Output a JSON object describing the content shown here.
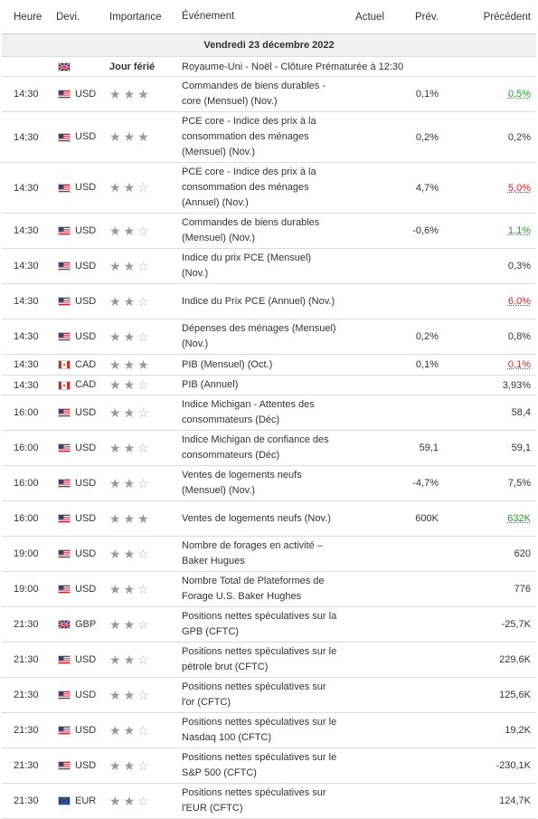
{
  "headers": {
    "time": "Heure",
    "currency": "Devi.",
    "importance": "Importance",
    "event": "Événement",
    "actual": "Actuel",
    "forecast": "Prév.",
    "previous": "Précédent"
  },
  "date_row": "Vendredi 23 décembre 2022",
  "holiday": {
    "flag": "gb",
    "importance_label": "Jour férié",
    "event": "Royaume-Uni - Noël - Clôture Prématurée à 12:30"
  },
  "colors": {
    "green": "#2a9a2a",
    "red": "#d0262d",
    "date_bg": "#f1f1f1"
  },
  "rows": [
    {
      "time": "14:30",
      "flag": "us",
      "currency": "USD",
      "stars": 3,
      "event": "Commandes de biens durables - core (Mensuel) (Nov.)",
      "actual": "",
      "forecast": "0,1%",
      "previous": "0,5%",
      "prev_color": "green",
      "height": 39
    },
    {
      "time": "14:30",
      "flag": "us",
      "currency": "USD",
      "stars": 3,
      "event": "PCE core - Indice des prix à la consommation des ménages (Mensuel) (Nov.)",
      "actual": "",
      "forecast": "0,2%",
      "previous": "0,2%",
      "prev_color": "",
      "height": 56
    },
    {
      "time": "14:30",
      "flag": "us",
      "currency": "USD",
      "stars": 2,
      "event": "PCE core - Indice des prix à la consommation des ménages (Annuel) (Nov.)",
      "actual": "",
      "forecast": "4,7%",
      "previous": "5,0%",
      "prev_color": "red",
      "height": 56
    },
    {
      "time": "14:30",
      "flag": "us",
      "currency": "USD",
      "stars": 2,
      "event": "Commandes de biens durables (Mensuel) (Nov.)",
      "actual": "",
      "forecast": "-0,6%",
      "previous": "1,1%",
      "prev_color": "green",
      "height": 39
    },
    {
      "time": "14:30",
      "flag": "us",
      "currency": "USD",
      "stars": 2,
      "event": "Indice du prix PCE (Mensuel) (Nov.)",
      "actual": "",
      "forecast": "",
      "previous": "0,3%",
      "prev_color": "",
      "height": 39
    },
    {
      "time": "14:30",
      "flag": "us",
      "currency": "USD",
      "stars": 2,
      "event": "Indice du Prix PCE (Annuel) (Nov.)",
      "actual": "",
      "forecast": "",
      "previous": "6,0%",
      "prev_color": "red",
      "height": 39
    },
    {
      "time": "14:30",
      "flag": "us",
      "currency": "USD",
      "stars": 2,
      "event": "Dépenses des ménages (Mensuel) (Nov.)",
      "actual": "",
      "forecast": "0,2%",
      "previous": "0,8%",
      "prev_color": "",
      "height": 39
    },
    {
      "time": "14:30",
      "flag": "ca",
      "currency": "CAD",
      "stars": 3,
      "event": "PIB (Mensuel) (Oct.)",
      "actual": "",
      "forecast": "0,1%",
      "previous": "0,1%",
      "prev_color": "red",
      "height": 23
    },
    {
      "time": "14:30",
      "flag": "ca",
      "currency": "CAD",
      "stars": 2,
      "event": "PIB (Annuel)",
      "actual": "",
      "forecast": "",
      "previous": "3,93%",
      "prev_color": "",
      "height": 22
    },
    {
      "time": "16:00",
      "flag": "us",
      "currency": "USD",
      "stars": 2,
      "event": "Indice Michigan - Attentes des consommateurs (Déc)",
      "actual": "",
      "forecast": "",
      "previous": "58,4",
      "prev_color": "",
      "height": 39
    },
    {
      "time": "16:00",
      "flag": "us",
      "currency": "USD",
      "stars": 2,
      "event": "Indice Michigan de confiance des consommateurs (Déc)",
      "actual": "",
      "forecast": "59,1",
      "previous": "59,1",
      "prev_color": "",
      "height": 39
    },
    {
      "time": "16:00",
      "flag": "us",
      "currency": "USD",
      "stars": 2,
      "event": "Ventes de logements neufs (Mensuel) (Nov.)",
      "actual": "",
      "forecast": "-4,7%",
      "previous": "7,5%",
      "prev_color": "",
      "height": 39
    },
    {
      "time": "16:00",
      "flag": "us",
      "currency": "USD",
      "stars": 3,
      "event": "Ventes de logements neufs (Nov.)",
      "actual": "",
      "forecast": "600K",
      "previous": "632K",
      "prev_color": "green",
      "height": 39
    },
    {
      "time": "19:00",
      "flag": "us",
      "currency": "USD",
      "stars": 2,
      "event": "Nombre de forages en activité – Baker Hugues",
      "actual": "",
      "forecast": "",
      "previous": "620",
      "prev_color": "",
      "height": 39
    },
    {
      "time": "19:00",
      "flag": "us",
      "currency": "USD",
      "stars": 2,
      "event": "Nombre Total de Plateformes de Forage U.S. Baker Hughes",
      "actual": "",
      "forecast": "",
      "previous": "776",
      "prev_color": "",
      "height": 39
    },
    {
      "time": "21:30",
      "flag": "gb",
      "currency": "GBP",
      "stars": 2,
      "event": "Positions nettes spéculatives sur la GPB (CFTC)",
      "actual": "",
      "forecast": "",
      "previous": "-25,7K",
      "prev_color": "",
      "height": 39
    },
    {
      "time": "21:30",
      "flag": "us",
      "currency": "USD",
      "stars": 2,
      "event": "Positions nettes spéculatives sur le pétrole brut (CFTC)",
      "actual": "",
      "forecast": "",
      "previous": "229,6K",
      "prev_color": "",
      "height": 39
    },
    {
      "time": "21:30",
      "flag": "us",
      "currency": "USD",
      "stars": 2,
      "event": "Positions nettes spéculatives sur l'or (CFTC)",
      "actual": "",
      "forecast": "",
      "previous": "125,6K",
      "prev_color": "",
      "height": 39
    },
    {
      "time": "21:30",
      "flag": "us",
      "currency": "USD",
      "stars": 2,
      "event": "Positions nettes spéculatives sur le Nasdaq 100 (CFTC)",
      "actual": "",
      "forecast": "",
      "previous": "19,2K",
      "prev_color": "",
      "height": 39
    },
    {
      "time": "21:30",
      "flag": "us",
      "currency": "USD",
      "stars": 2,
      "event": "Positions nettes spéculatives sur le S&P 500 (CFTC)",
      "actual": "",
      "forecast": "",
      "previous": "-230,1K",
      "prev_color": "",
      "height": 39
    },
    {
      "time": "21:30",
      "flag": "eu",
      "currency": "EUR",
      "stars": 2,
      "event": "Positions nettes spéculatives sur l'EUR (CFTC)",
      "actual": "",
      "forecast": "",
      "previous": "124,7K",
      "prev_color": "",
      "height": 39
    }
  ]
}
